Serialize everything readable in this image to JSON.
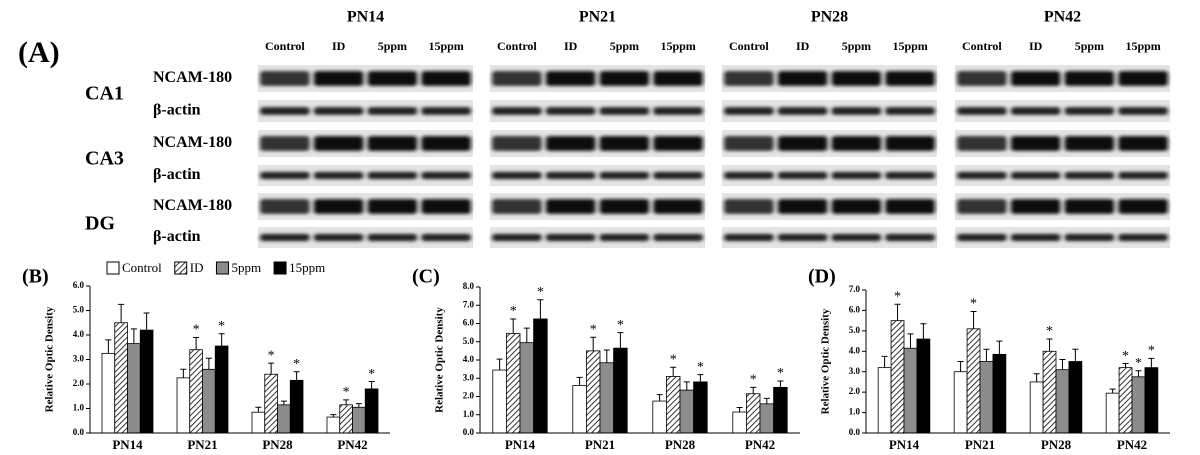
{
  "blot": {
    "panel_label": "(A)",
    "timepoints": [
      {
        "title": "PN14",
        "lanes": [
          "Control",
          "ID",
          "5ppm",
          "15ppm"
        ]
      },
      {
        "title": "PN21",
        "lanes": [
          "Control",
          "ID",
          "5ppm",
          "15ppm"
        ]
      },
      {
        "title": "PN28",
        "lanes": [
          "Control",
          "ID",
          "5ppm",
          "15ppm"
        ]
      },
      {
        "title": "PN42",
        "lanes": [
          "Control",
          "ID",
          "5ppm",
          "15ppm"
        ]
      }
    ],
    "regions": [
      {
        "name": "CA1",
        "rows": [
          "NCAM-180",
          "β-actin"
        ]
      },
      {
        "name": "CA3",
        "rows": [
          "NCAM-180",
          "β-actin"
        ]
      },
      {
        "name": "DG",
        "rows": [
          "NCAM-180",
          "β-actin"
        ]
      }
    ]
  },
  "chart_data": [
    {
      "type": "bar",
      "label": "(B)",
      "y_label": "Relative Optic Density",
      "legend": true,
      "categories": [
        "PN14",
        "PN21",
        "PN28",
        "PN42"
      ],
      "ylim": [
        0,
        6
      ],
      "yticks": [
        {
          "value": 0,
          "label": "0.0"
        },
        {
          "value": 1,
          "label": "1.0"
        },
        {
          "value": 2,
          "label": "2.0"
        },
        {
          "value": 3,
          "label": "3.0"
        },
        {
          "value": 4,
          "label": "4.0"
        },
        {
          "value": 5,
          "label": "5.0"
        },
        {
          "value": 6,
          "label": "6.0"
        }
      ],
      "series": [
        {
          "name": "Control",
          "color": "#ffffff",
          "values": [
            3.25,
            2.25,
            0.85,
            0.65
          ],
          "errors": [
            0.55,
            0.35,
            0.2,
            0.1
          ]
        },
        {
          "name": "ID",
          "color": "#ffffff",
          "hatch": true,
          "values": [
            4.5,
            3.4,
            2.4,
            1.15
          ],
          "errors": [
            0.75,
            0.5,
            0.45,
            0.2
          ],
          "significance": [
            null,
            "*",
            "*",
            "*"
          ]
        },
        {
          "name": "5ppm",
          "color": "#8c8c8c",
          "values": [
            3.65,
            2.6,
            1.15,
            1.05
          ],
          "errors": [
            0.6,
            0.45,
            0.15,
            0.15
          ]
        },
        {
          "name": "15ppm",
          "color": "#000000",
          "values": [
            4.2,
            3.55,
            2.15,
            1.8
          ],
          "errors": [
            0.7,
            0.5,
            0.35,
            0.3
          ],
          "significance": [
            null,
            "*",
            "*",
            "*"
          ]
        }
      ]
    },
    {
      "type": "bar",
      "label": "(C)",
      "y_label": "Relative Optic Density",
      "categories": [
        "PN14",
        "PN21",
        "PN28",
        "PN42"
      ],
      "ylim": [
        0,
        8
      ],
      "yticks": [
        {
          "value": 0,
          "label": "0.0"
        },
        {
          "value": 1,
          "label": "1.0"
        },
        {
          "value": 2,
          "label": "2.0"
        },
        {
          "value": 3,
          "label": "3.0"
        },
        {
          "value": 4,
          "label": "4.0"
        },
        {
          "value": 5,
          "label": "5.0"
        },
        {
          "value": 6,
          "label": "6.0"
        },
        {
          "value": 7,
          "label": "7.0"
        },
        {
          "value": 8,
          "label": "8.0"
        }
      ],
      "series": [
        {
          "color": "#ffffff",
          "values": [
            3.45,
            2.6,
            1.75,
            1.15
          ],
          "errors": [
            0.6,
            0.45,
            0.35,
            0.25
          ]
        },
        {
          "color": "#ffffff",
          "hatch": true,
          "values": [
            5.45,
            4.5,
            3.1,
            2.15
          ],
          "errors": [
            0.8,
            0.75,
            0.5,
            0.35
          ],
          "significance": [
            "*",
            "*",
            "*",
            "*"
          ]
        },
        {
          "color": "#8c8c8c",
          "values": [
            4.95,
            3.85,
            2.35,
            1.6
          ],
          "errors": [
            0.8,
            0.7,
            0.45,
            0.3
          ]
        },
        {
          "color": "#000000",
          "values": [
            6.25,
            4.65,
            2.8,
            2.5
          ],
          "errors": [
            1.05,
            0.85,
            0.4,
            0.35
          ],
          "significance": [
            "*",
            "*",
            "*",
            "*"
          ]
        }
      ]
    },
    {
      "type": "bar",
      "label": "(D)",
      "y_label": "Relative Optic Density",
      "categories": [
        "PN14",
        "PN21",
        "PN28",
        "PN42"
      ],
      "ylim": [
        0,
        7
      ],
      "yticks": [
        {
          "value": 0,
          "label": "0.0"
        },
        {
          "value": 1,
          "label": "1.0"
        },
        {
          "value": 2,
          "label": "2.0"
        },
        {
          "value": 3,
          "label": "3.0"
        },
        {
          "value": 4,
          "label": "4.0"
        },
        {
          "value": 5,
          "label": "5.0"
        },
        {
          "value": 6,
          "label": "6.0"
        },
        {
          "value": 7,
          "label": "7.0"
        }
      ],
      "series": [
        {
          "color": "#ffffff",
          "values": [
            3.2,
            3.0,
            2.5,
            1.95
          ],
          "errors": [
            0.55,
            0.5,
            0.4,
            0.2
          ]
        },
        {
          "color": "#ffffff",
          "hatch": true,
          "values": [
            5.5,
            5.1,
            4.0,
            3.2
          ],
          "errors": [
            0.8,
            0.85,
            0.6,
            0.2
          ],
          "significance": [
            "*",
            "*",
            "*",
            "*"
          ]
        },
        {
          "color": "#8c8c8c",
          "values": [
            4.15,
            3.5,
            3.1,
            2.75
          ],
          "errors": [
            0.7,
            0.6,
            0.5,
            0.3
          ],
          "significance": [
            null,
            null,
            null,
            "*"
          ]
        },
        {
          "color": "#000000",
          "values": [
            4.6,
            3.85,
            3.5,
            3.2
          ],
          "errors": [
            0.75,
            0.65,
            0.6,
            0.45
          ],
          "significance": [
            null,
            null,
            null,
            "*"
          ]
        }
      ]
    }
  ]
}
